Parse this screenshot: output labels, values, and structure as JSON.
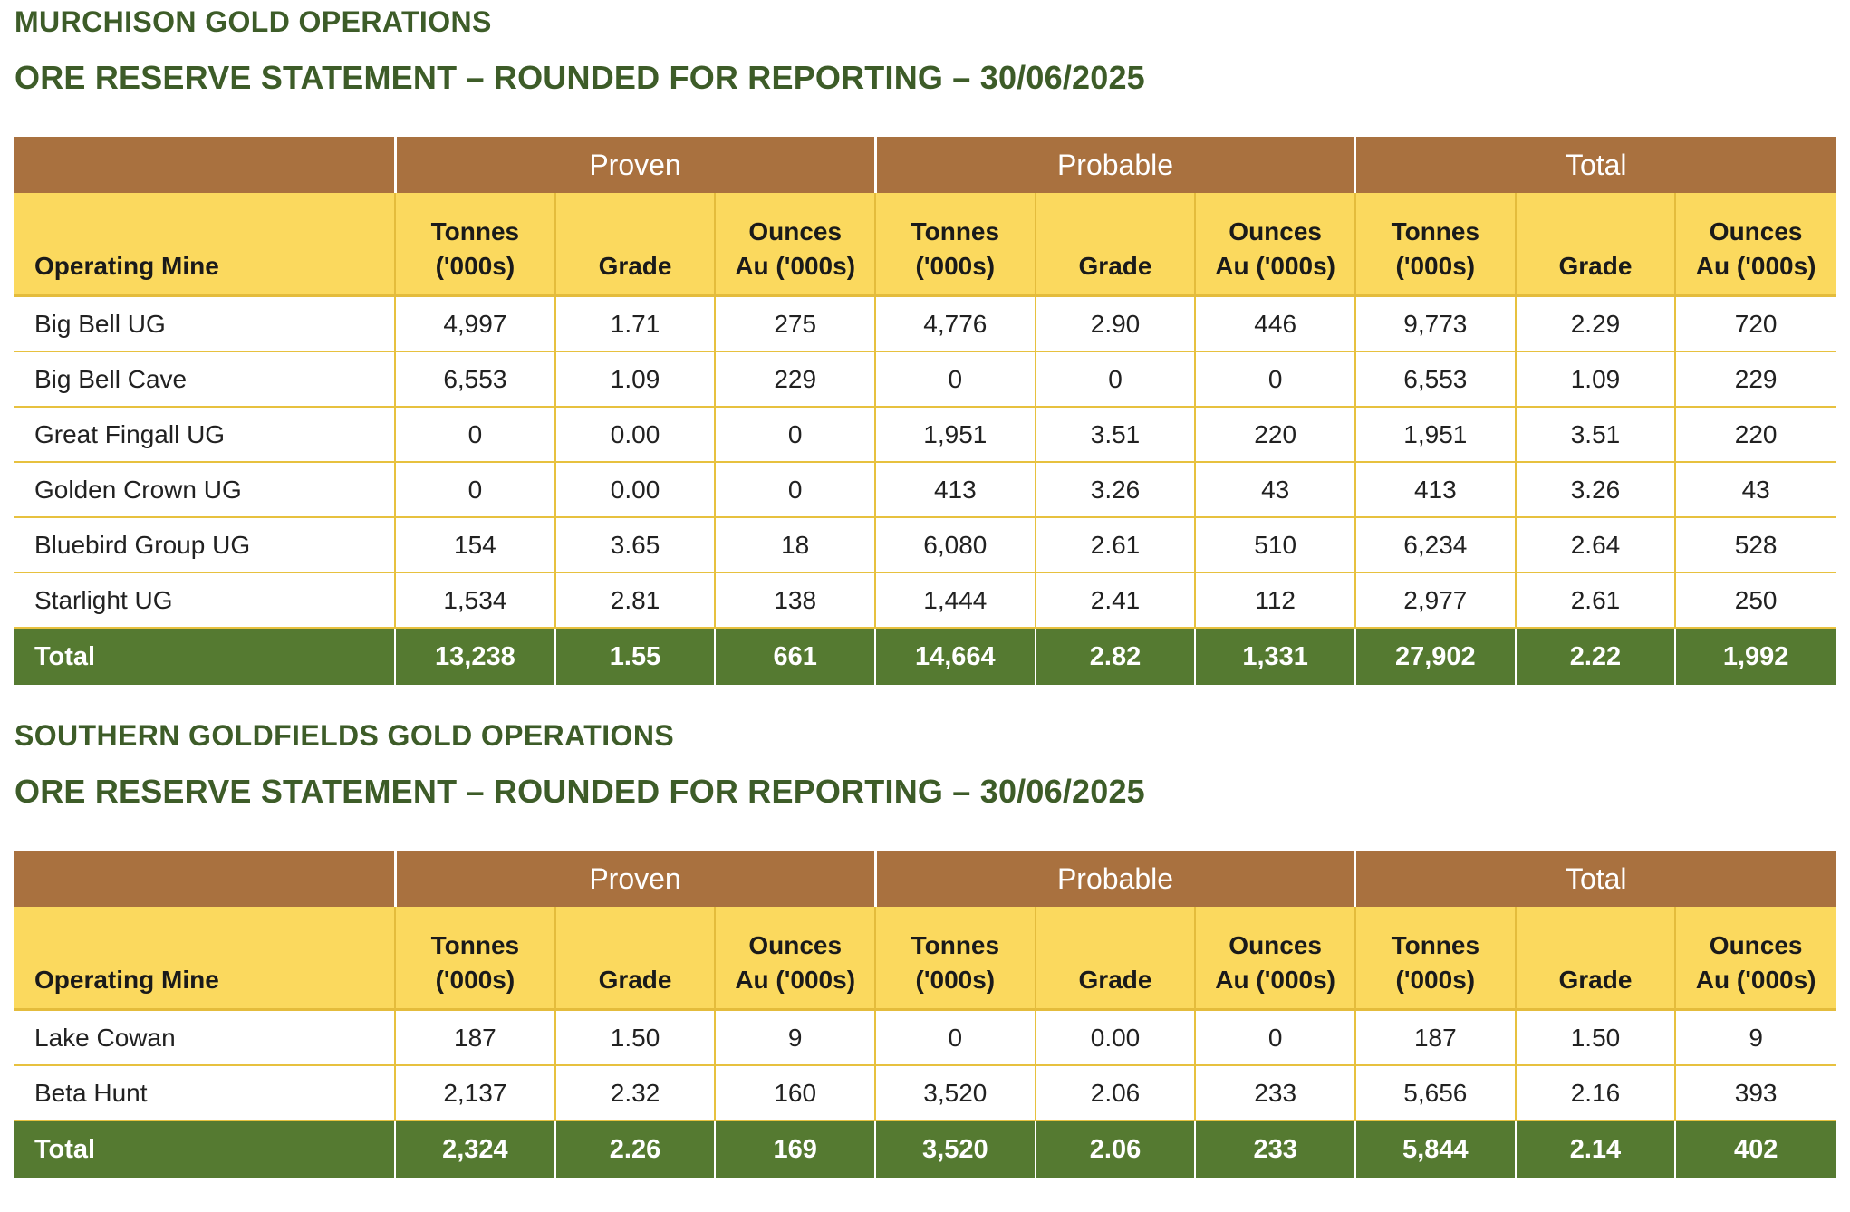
{
  "colors": {
    "title_green": "#3D5C28",
    "header_brown": "#A9713F",
    "header_yellow": "#FBD95E",
    "grid_gold": "#E7C13F",
    "total_green": "#557A31"
  },
  "sections": [
    {
      "title": "MURCHISON GOLD OPERATIONS",
      "subtitle": "ORE RESERVE STATEMENT – ROUNDED FOR REPORTING – 30/06/2025",
      "table": {
        "first_column_header": "Operating Mine",
        "group_headers": [
          "Proven",
          "Probable",
          "Total"
        ],
        "sub_headers": [
          "Tonnes\n('000s)",
          "Grade",
          "Ounces\nAu ('000s)",
          "Tonnes\n('000s)",
          "Grade",
          "Ounces\nAu ('000s)",
          "Tonnes\n('000s)",
          "Grade",
          "Ounces\nAu ('000s)"
        ],
        "rows": [
          {
            "mine": "Big Bell UG",
            "values": [
              "4,997",
              "1.71",
              "275",
              "4,776",
              "2.90",
              "446",
              "9,773",
              "2.29",
              "720"
            ]
          },
          {
            "mine": "Big Bell Cave",
            "values": [
              "6,553",
              "1.09",
              "229",
              "0",
              "0",
              "0",
              "6,553",
              "1.09",
              "229"
            ]
          },
          {
            "mine": "Great Fingall UG",
            "values": [
              "0",
              "0.00",
              "0",
              "1,951",
              "3.51",
              "220",
              "1,951",
              "3.51",
              "220"
            ]
          },
          {
            "mine": "Golden Crown UG",
            "values": [
              "0",
              "0.00",
              "0",
              "413",
              "3.26",
              "43",
              "413",
              "3.26",
              "43"
            ]
          },
          {
            "mine": "Bluebird Group UG",
            "values": [
              "154",
              "3.65",
              "18",
              "6,080",
              "2.61",
              "510",
              "6,234",
              "2.64",
              "528"
            ]
          },
          {
            "mine": "Starlight UG",
            "values": [
              "1,534",
              "2.81",
              "138",
              "1,444",
              "2.41",
              "112",
              "2,977",
              "2.61",
              "250"
            ]
          }
        ],
        "total": {
          "label": "Total",
          "values": [
            "13,238",
            "1.55",
            "661",
            "14,664",
            "2.82",
            "1,331",
            "27,902",
            "2.22",
            "1,992"
          ]
        }
      }
    },
    {
      "title": "SOUTHERN GOLDFIELDS GOLD OPERATIONS",
      "subtitle": "ORE RESERVE STATEMENT – ROUNDED FOR REPORTING – 30/06/2025",
      "table": {
        "first_column_header": "Operating Mine",
        "group_headers": [
          "Proven",
          "Probable",
          "Total"
        ],
        "sub_headers": [
          "Tonnes\n('000s)",
          "Grade",
          "Ounces\nAu ('000s)",
          "Tonnes\n('000s)",
          "Grade",
          "Ounces\nAu ('000s)",
          "Tonnes\n('000s)",
          "Grade",
          "Ounces\nAu ('000s)"
        ],
        "rows": [
          {
            "mine": "Lake Cowan",
            "values": [
              "187",
              "1.50",
              "9",
              "0",
              "0.00",
              "0",
              "187",
              "1.50",
              "9"
            ]
          },
          {
            "mine": "Beta Hunt",
            "values": [
              "2,137",
              "2.32",
              "160",
              "3,520",
              "2.06",
              "233",
              "5,656",
              "2.16",
              "393"
            ]
          }
        ],
        "total": {
          "label": "Total",
          "values": [
            "2,324",
            "2.26",
            "169",
            "3,520",
            "2.06",
            "233",
            "5,844",
            "2.14",
            "402"
          ]
        }
      }
    }
  ]
}
